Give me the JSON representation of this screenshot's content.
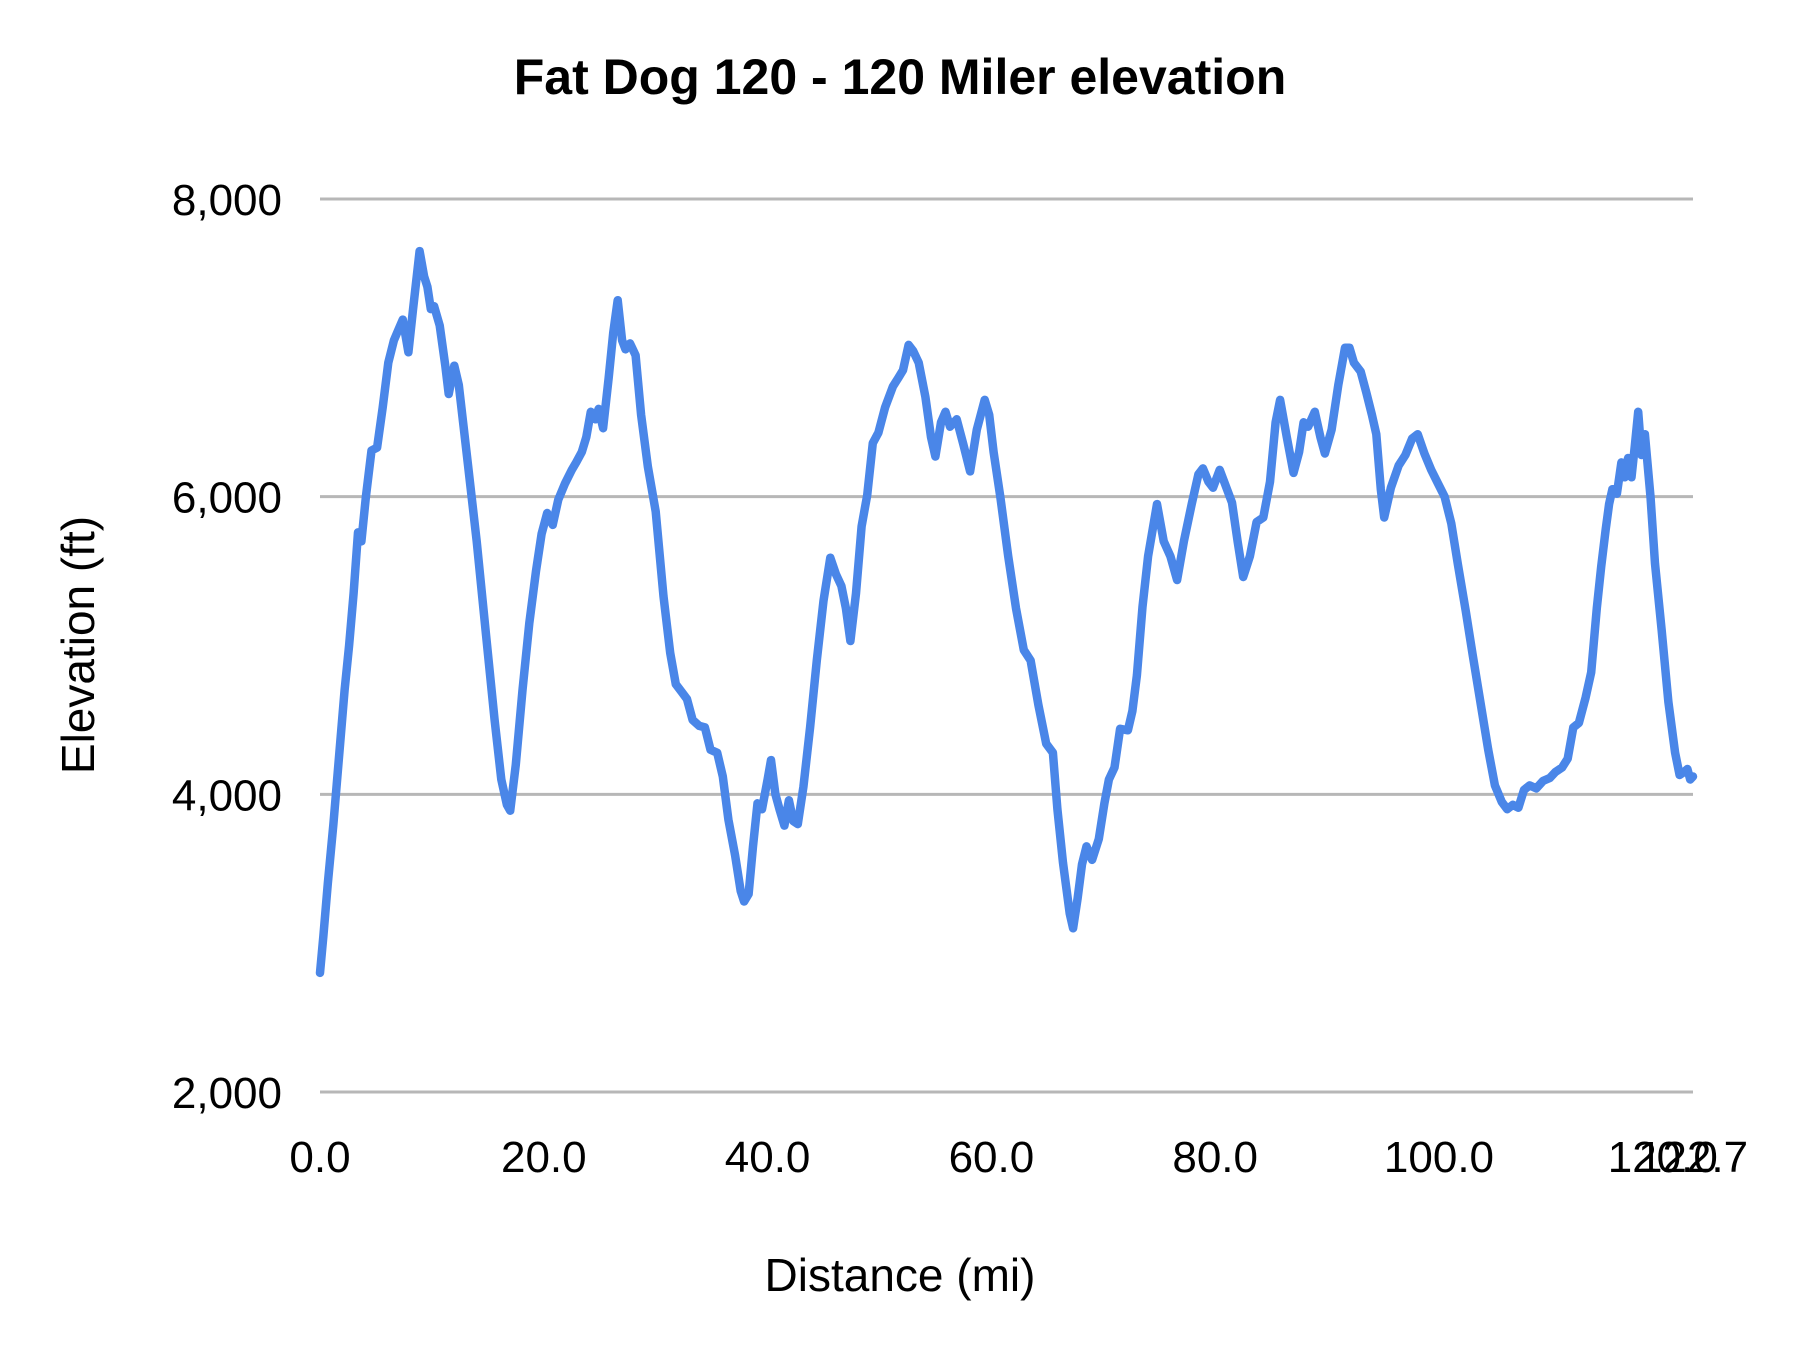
{
  "chart": {
    "title": "Fat Dog 120 - 120 Miler elevation",
    "x_axis": {
      "title": "Distance (mi)",
      "ticks": [
        {
          "value": 0,
          "label": "0.0"
        },
        {
          "value": 20,
          "label": "20.0"
        },
        {
          "value": 40,
          "label": "40.0"
        },
        {
          "value": 60,
          "label": "60.0"
        },
        {
          "value": 80,
          "label": "80.0"
        },
        {
          "value": 100,
          "label": "100.0"
        },
        {
          "value": 120,
          "label": "120.0"
        },
        {
          "value": 122.7,
          "label": "122.7"
        }
      ]
    },
    "y_axis": {
      "title": "Elevation (ft)",
      "ticks": [
        {
          "value": 2000,
          "label": "2,000"
        },
        {
          "value": 4000,
          "label": "4,000"
        },
        {
          "value": 6000,
          "label": "6,000"
        },
        {
          "value": 8000,
          "label": "8,000"
        }
      ]
    },
    "colors": {
      "line": "#4a86e8",
      "gridline": "#b7b7b7",
      "text": "#000000",
      "background": "#ffffff"
    }
  },
  "chart_data": {
    "type": "line",
    "title": "Fat Dog 120 - 120 Miler elevation",
    "xlabel": "Distance (mi)",
    "ylabel": "Elevation (ft)",
    "xlim": [
      0,
      122.7
    ],
    "ylim": [
      2000,
      8000
    ],
    "x_ticks": [
      0,
      20,
      40,
      60,
      80,
      100,
      120,
      122.7
    ],
    "x_tick_labels": [
      "0.0",
      "20.0",
      "40.0",
      "60.0",
      "80.0",
      "100.0",
      "120.0",
      "122.7"
    ],
    "y_ticks": [
      2000,
      4000,
      6000,
      8000
    ],
    "grid": "horizontal-only",
    "legend": "none",
    "series": [
      {
        "name": "elevation",
        "x": [
          0,
          0.3,
          0.7,
          1.2,
          1.7,
          2.2,
          2.6,
          3,
          3.4,
          3.7,
          4.1,
          4.6,
          5.1,
          5.6,
          6.1,
          6.6,
          7,
          7.4,
          7.9,
          8.3,
          8.9,
          9.3,
          9.6,
          9.9,
          10.2,
          10.7,
          11.2,
          11.5,
          12,
          12.4,
          13.2,
          14,
          14.8,
          15.6,
          16.2,
          16.7,
          17,
          17.5,
          18.1,
          18.7,
          19.3,
          19.8,
          20.3,
          20.8,
          21.3,
          21.9,
          22.5,
          22.9,
          23.4,
          23.8,
          24.2,
          24.6,
          24.9,
          25.3,
          25.8,
          26.2,
          26.6,
          27,
          27.3,
          27.7,
          28.2,
          28.7,
          29.3,
          30,
          30.7,
          31.3,
          31.8,
          32.3,
          32.8,
          33.3,
          33.9,
          34.4,
          34.9,
          35.5,
          36,
          36.5,
          37.1,
          37.6,
          37.9,
          38.3,
          38.7,
          39.1,
          39.5,
          40,
          40.3,
          40.7,
          41.1,
          41.5,
          41.9,
          42.3,
          42.7,
          43.2,
          43.8,
          44.4,
          45,
          45.6,
          46.1,
          46.6,
          47,
          47.4,
          47.9,
          48.4,
          48.9,
          49.4,
          49.9,
          50.5,
          51.2,
          51.7,
          52.1,
          52.6,
          53,
          53.5,
          54.1,
          54.6,
          55,
          55.5,
          55.9,
          56.3,
          56.9,
          57.5,
          58.1,
          58.7,
          59.4,
          59.8,
          60.2,
          60.8,
          61.5,
          62.2,
          62.9,
          63.5,
          64.2,
          64.9,
          65.5,
          65.9,
          66.4,
          67,
          67.3,
          67.7,
          68.1,
          68.5,
          69,
          69.6,
          70.1,
          70.5,
          71,
          71.5,
          72.2,
          72.6,
          73,
          73.5,
          74,
          74.8,
          75.4,
          76,
          76.6,
          77.2,
          77.9,
          78.5,
          78.9,
          79.4,
          79.8,
          80.4,
          80.9,
          81.5,
          82,
          82.5,
          83.1,
          83.7,
          84.3,
          84.9,
          85.4,
          85.8,
          86.4,
          87,
          87.5,
          87.9,
          88.3,
          88.9,
          89.4,
          89.8,
          90.4,
          91,
          91.6,
          92,
          92.4,
          93,
          93.5,
          94,
          94.4,
          94.8,
          95.1,
          95.7,
          96.4,
          97,
          97.6,
          98.1,
          98.7,
          99.3,
          99.9,
          100.5,
          101.1,
          101.7,
          102.4,
          103,
          103.7,
          104.4,
          105,
          105.6,
          106.1,
          106.6,
          107.1,
          107.6,
          108.1,
          108.7,
          109.3,
          109.9,
          110.4,
          111,
          111.5,
          112,
          112.5,
          113.1,
          113.6,
          114.1,
          114.5,
          114.9,
          115.2,
          115.5,
          115.9,
          116.3,
          116.6,
          116.9,
          117.2,
          117.5,
          117.8,
          118.1,
          118.4,
          118.9,
          119.3,
          119.9,
          120.5,
          121.1,
          121.5,
          121.9,
          122.2,
          122.45,
          122.7
        ],
        "y": [
          2800,
          3050,
          3400,
          3800,
          4250,
          4700,
          5000,
          5350,
          5760,
          5700,
          6000,
          6310,
          6330,
          6600,
          6900,
          7050,
          7120,
          7190,
          6970,
          7250,
          7650,
          7480,
          7410,
          7260,
          7280,
          7150,
          6880,
          6690,
          6880,
          6750,
          6230,
          5700,
          5100,
          4500,
          4100,
          3930,
          3890,
          4200,
          4700,
          5150,
          5500,
          5750,
          5890,
          5810,
          5980,
          6090,
          6180,
          6230,
          6300,
          6400,
          6570,
          6520,
          6590,
          6460,
          6800,
          7100,
          7320,
          7050,
          6990,
          7030,
          6950,
          6550,
          6200,
          5900,
          5330,
          4950,
          4740,
          4690,
          4640,
          4500,
          4460,
          4450,
          4300,
          4280,
          4120,
          3830,
          3590,
          3350,
          3280,
          3330,
          3650,
          3940,
          3900,
          4100,
          4230,
          4000,
          3890,
          3790,
          3960,
          3820,
          3800,
          4050,
          4450,
          4900,
          5300,
          5590,
          5480,
          5400,
          5250,
          5030,
          5350,
          5800,
          6010,
          6360,
          6430,
          6600,
          6740,
          6800,
          6850,
          7020,
          6980,
          6900,
          6670,
          6400,
          6270,
          6500,
          6570,
          6470,
          6520,
          6350,
          6170,
          6450,
          6650,
          6550,
          6300,
          6000,
          5600,
          5250,
          4970,
          4900,
          4600,
          4340,
          4280,
          3900,
          3540,
          3200,
          3100,
          3300,
          3530,
          3650,
          3560,
          3700,
          3940,
          4100,
          4180,
          4440,
          4430,
          4560,
          4800,
          5260,
          5600,
          5950,
          5700,
          5600,
          5440,
          5700,
          5950,
          6150,
          6190,
          6100,
          6060,
          6180,
          6080,
          5960,
          5700,
          5460,
          5600,
          5830,
          5860,
          6100,
          6500,
          6650,
          6400,
          6160,
          6300,
          6500,
          6470,
          6570,
          6400,
          6290,
          6450,
          6750,
          7000,
          7000,
          6900,
          6840,
          6700,
          6550,
          6420,
          6050,
          5860,
          6060,
          6210,
          6280,
          6390,
          6420,
          6290,
          6180,
          6090,
          6000,
          5820,
          5540,
          5230,
          4940,
          4620,
          4300,
          4060,
          3950,
          3900,
          3930,
          3910,
          4030,
          4060,
          4040,
          4090,
          4110,
          4150,
          4180,
          4240,
          4450,
          4480,
          4650,
          4820,
          5250,
          5530,
          5780,
          5950,
          6050,
          6020,
          6230,
          6130,
          6260,
          6130,
          6340,
          6570,
          6280,
          6420,
          6000,
          5550,
          5100,
          4620,
          4280,
          4130,
          4150,
          4170,
          4100,
          4120
        ]
      }
    ]
  }
}
